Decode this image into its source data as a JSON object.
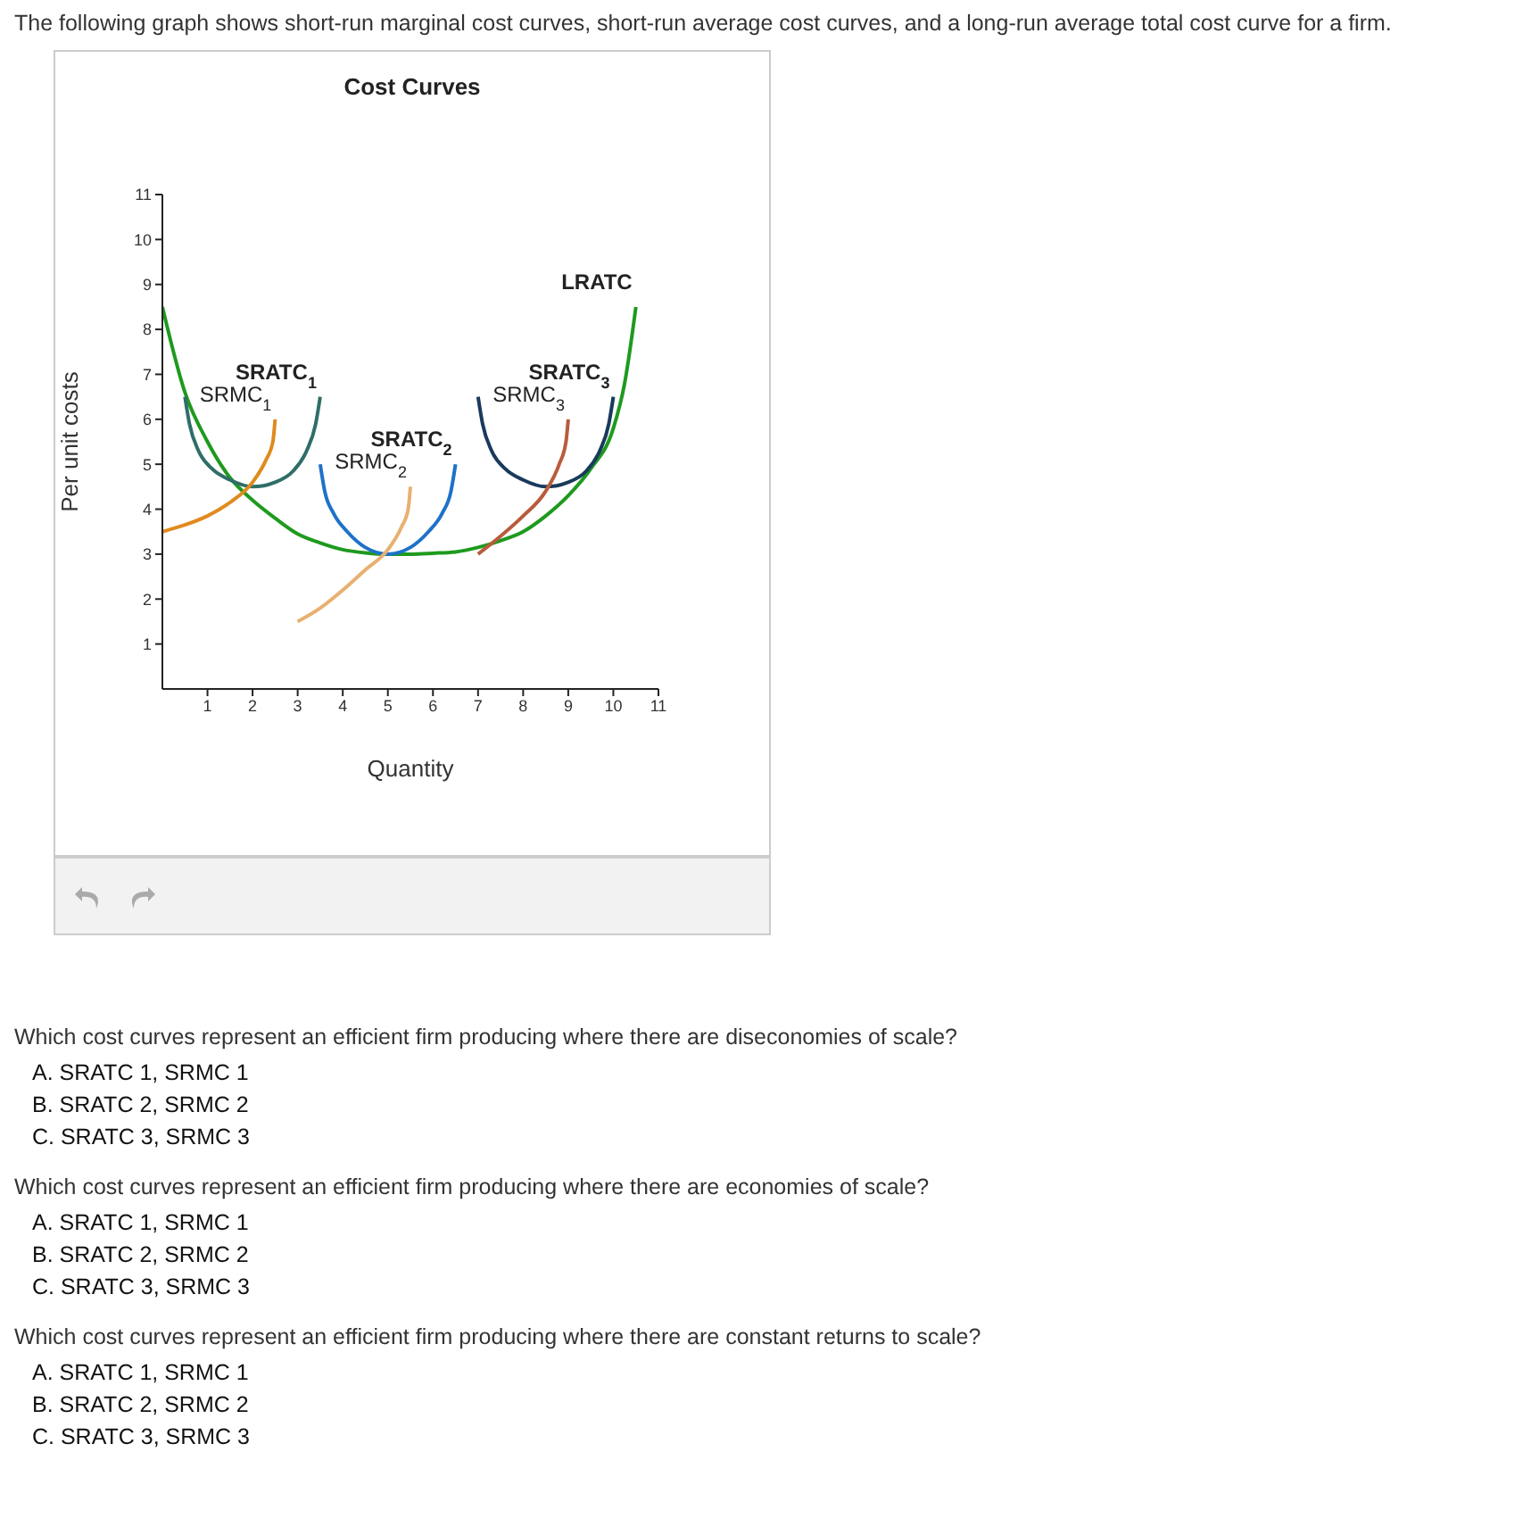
{
  "chart_data": {
    "type": "line",
    "title": "Cost Curves",
    "xlabel": "Quantity",
    "ylabel": "Per unit costs",
    "xlim": [
      0,
      11
    ],
    "ylim": [
      0,
      11
    ],
    "xticks": [
      1,
      2,
      3,
      4,
      5,
      6,
      7,
      8,
      9,
      10,
      11
    ],
    "yticks": [
      1,
      2,
      3,
      4,
      5,
      6,
      7,
      8,
      9,
      10,
      11
    ],
    "grid": false,
    "legend": false,
    "marker": "none",
    "line_style": "solid",
    "series": [
      {
        "name": "LRATC",
        "color": "#1e9a1e",
        "x": [
          0,
          0.5,
          1,
          1.5,
          2,
          2.5,
          3,
          3.5,
          4,
          4.5,
          5,
          5.5,
          6,
          6.5,
          7,
          7.5,
          8,
          8.5,
          9,
          9.5,
          10,
          10.25,
          10.5
        ],
        "values": [
          8.5,
          6.6,
          5.5,
          4.7,
          4.2,
          3.8,
          3.45,
          3.25,
          3.1,
          3.03,
          3,
          3,
          3.02,
          3.05,
          3.15,
          3.3,
          3.5,
          3.85,
          4.3,
          4.9,
          5.8,
          6.8,
          8.5
        ]
      },
      {
        "name": "SRATC$_{1}$",
        "color": "#2f6e68",
        "x": [
          0.5,
          0.6,
          0.8,
          1.1,
          1.5,
          2,
          2.5,
          2.9,
          3.2,
          3.4,
          3.5
        ],
        "values": [
          6.5,
          5.9,
          5.3,
          4.9,
          4.65,
          4.5,
          4.6,
          4.85,
          5.3,
          5.9,
          6.5
        ]
      },
      {
        "name": "SRMC$_{1}$",
        "color": "#e08a1e",
        "x": [
          0,
          0.5,
          1,
          1.5,
          2,
          2.3,
          2.45,
          2.5
        ],
        "values": [
          3.5,
          3.65,
          3.85,
          4.15,
          4.6,
          5.1,
          5.5,
          6
        ]
      },
      {
        "name": "SRATC$_{2}$",
        "color": "#1e72c8",
        "x": [
          3.5,
          3.6,
          3.8,
          4.1,
          4.5,
          5,
          5.5,
          5.9,
          6.2,
          6.4,
          6.5
        ],
        "values": [
          5,
          4.4,
          3.9,
          3.5,
          3.15,
          3,
          3.15,
          3.5,
          3.9,
          4.4,
          5
        ]
      },
      {
        "name": "SRMC$_{2}$",
        "color": "#e8b070",
        "x": [
          3,
          3.5,
          4,
          4.5,
          5,
          5.3,
          5.45,
          5.5
        ],
        "values": [
          1.5,
          1.8,
          2.2,
          2.65,
          3.1,
          3.6,
          4,
          4.5
        ]
      },
      {
        "name": "SRATC$_{3}$",
        "color": "#1a3a5c",
        "x": [
          7,
          7.1,
          7.3,
          7.6,
          8,
          8.5,
          9,
          9.4,
          9.7,
          9.9,
          10
        ],
        "values": [
          6.5,
          5.9,
          5.3,
          4.9,
          4.65,
          4.5,
          4.6,
          4.85,
          5.3,
          5.9,
          6.5
        ]
      },
      {
        "name": "SRMC$_{3}$",
        "color": "#b85c3c",
        "x": [
          7,
          7.5,
          8,
          8.5,
          8.8,
          8.95,
          9
        ],
        "values": [
          3,
          3.4,
          3.85,
          4.4,
          5,
          5.5,
          6
        ]
      }
    ],
    "annotations": [
      "The following graph shows short-run marginal cost curves, short-run average cost curves, and a long-run average total cost curve for a firm.",
      "Which cost curves represent an efficient firm producing where there are diseconomies of scale?",
      "A.   SRATC 1, SRMC 1",
      "B.   SRATC 2, SRMC 2",
      "C.   SRATC 3, SRMC 3",
      "Which cost curves represent an efficient firm producing where there are economies of scale?",
      "A.   SRATC 1, SRMC 1",
      "B.   SRATC 2, SRMC 2",
      "C.   SRATC 3, SRMC 3",
      "Which cost curves represent an efficient firm producing where there are constant returns to scale?",
      "A.   SRATC 1, SRMC 1",
      "B.   SRATC 2, SRMC 2",
      "C.   SRATC 3, SRMC 3"
    ]
  }
}
